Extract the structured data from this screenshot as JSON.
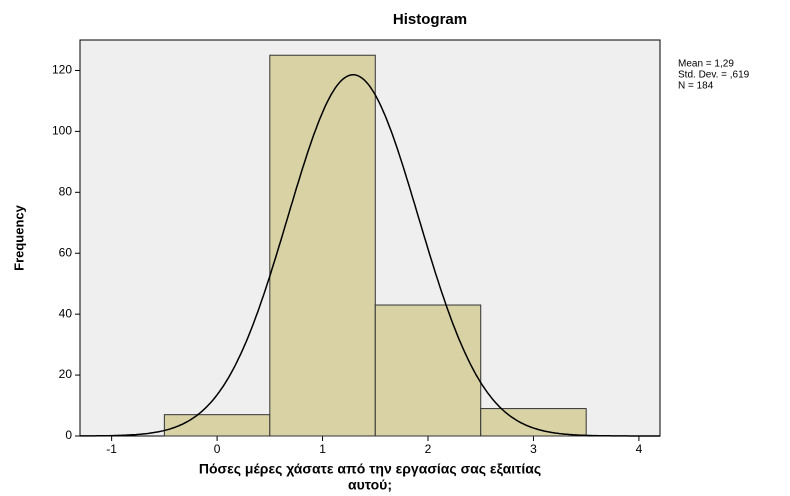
{
  "chart_data": {
    "type": "histogram",
    "title": "Histogram",
    "xlabel": [
      "Πόσες μέρες χάσατε από την εργασίας σας εξαιτίας",
      "αυτού;"
    ],
    "ylabel": "Frequency",
    "bins": [
      -0.5,
      0.5,
      1.5,
      2.5,
      3.5
    ],
    "counts": [
      7,
      125,
      43,
      9
    ],
    "color": "#d8d2a4",
    "xlim": [
      -1.3,
      4.2
    ],
    "xticks": [
      -1,
      0,
      1,
      2,
      3,
      4
    ],
    "ylim": [
      0,
      130
    ],
    "yticks": [
      0,
      20,
      40,
      60,
      80,
      100,
      120
    ],
    "stats": [
      {
        "value": 1.29,
        "label": "Mean = 1,29"
      },
      {
        "value": 0.619,
        "label": "Std. Dev. = ,619"
      },
      {
        "value": 184,
        "label": "N = 184"
      }
    ]
  }
}
